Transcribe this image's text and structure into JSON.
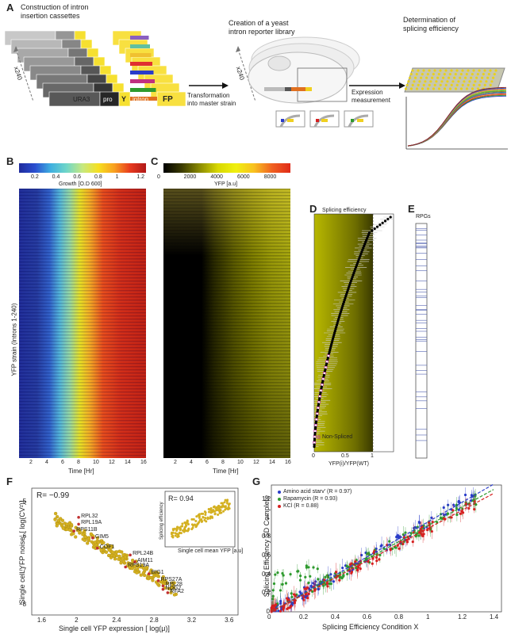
{
  "panels": {
    "A": {
      "label": "A",
      "step1_title": "Construction of intron\ninsertion cassettes",
      "step2_title": "Creation of a yeast\nintron reporter library",
      "step3_title": "Determination of\nsplicing efficiency",
      "x240_left": "x240",
      "x240_mid": "x240",
      "cassette": {
        "ura3": "URA3",
        "pro": "pro",
        "y": "Y",
        "intron": "intron",
        "fp": "FP"
      },
      "arrow1_label": "Transformation\ninto master strain",
      "arrow2_label": "Expression\nmeasurement"
    },
    "B": {
      "label": "B",
      "colorbar_ticks": [
        "0.2",
        "0.4",
        "0.6",
        "0.8",
        "1",
        "1.2"
      ],
      "colorbar_title": "Growth [O.D 600]",
      "ylabel": "YFP strain (Introns 1-240)",
      "xticks": [
        "2",
        "4",
        "6",
        "8",
        "10",
        "12",
        "14",
        "16"
      ],
      "xlabel": "Time [Hr]"
    },
    "C": {
      "label": "C",
      "colorbar_ticks": [
        "0",
        "2000",
        "4000",
        "6000",
        "8000"
      ],
      "colorbar_title": "YFP [a.u]",
      "xticks": [
        "2",
        "4",
        "6",
        "8",
        "10",
        "12",
        "14",
        "16"
      ],
      "xlabel": "Time [Hr]"
    },
    "D": {
      "label": "D",
      "title": "Splicing efficiency",
      "legend": "Non-Spliced",
      "xticks": [
        "0",
        "0.5",
        "1"
      ],
      "xlabel": "YFP(i)/YFP(WT)"
    },
    "E": {
      "label": "E",
      "title": "RPGs"
    },
    "F": {
      "label": "F",
      "r_main": "R= −0.99",
      "ylabel": "Single cell YFP noise, [ log(CV²)]",
      "xlabel": "Single cell YFP expression [ log(μ)]",
      "xticks": [
        "1.6",
        "2",
        "2.4",
        "2.8",
        "3.2",
        "3.6"
      ],
      "yticks": [
        "−5",
        "−6",
        "−7",
        "−8"
      ],
      "inset_r": "R= 0.94",
      "inset_ylabel": "Splicing efficiency",
      "inset_xlabel": "Single cell mean YFP [a.u]",
      "genes": [
        "RPL32",
        "RPL19A",
        "RPS11B",
        "GIM5",
        "COF1",
        "RPL24B",
        "AIM11",
        "RPS19A",
        "BIG1",
        "RPS27A",
        "RPL28",
        "NOG2",
        "RFA2"
      ]
    },
    "G": {
      "label": "G",
      "ylabel": "Splicing Efficiency SD Complete",
      "xlabel": "Splicing Efficiency Condition X",
      "xticks": [
        "0",
        "0.2",
        "0.4",
        "0.6",
        "0.8",
        "1",
        "1.2",
        "1.4"
      ],
      "yticks": [
        "0",
        "0.2",
        "0.4",
        "0.6",
        "0.8",
        "1",
        "1.2"
      ],
      "legend": [
        {
          "name": "Amino acid starv' (R = 0.97)",
          "color": "#2a3cc9"
        },
        {
          "name": "Rapamycin (R = 0.93)",
          "color": "#2e9a2e"
        },
        {
          "name": "KCl (R = 0.88)",
          "color": "#d62020"
        }
      ]
    }
  },
  "chart_data": [
    {
      "type": "scatter",
      "panel": "F",
      "xlim": [
        1.5,
        3.7
      ],
      "ylim": [
        -8.3,
        -4.6
      ],
      "color": "#d4b020",
      "labeled_points": [
        {
          "label": "RPL32",
          "x": 2.0,
          "y": -5.45
        },
        {
          "label": "RPL19A",
          "x": 2.0,
          "y": -5.65
        },
        {
          "label": "RPS11B",
          "x": 1.95,
          "y": -5.85
        },
        {
          "label": "GIM5",
          "x": 2.15,
          "y": -6.05
        },
        {
          "label": "COF1",
          "x": 2.2,
          "y": -6.35
        },
        {
          "label": "RPL24B",
          "x": 2.55,
          "y": -6.55
        },
        {
          "label": "AIM11",
          "x": 2.6,
          "y": -6.75
        },
        {
          "label": "RPS19A",
          "x": 2.5,
          "y": -6.9
        },
        {
          "label": "BIG1",
          "x": 2.75,
          "y": -7.1
        },
        {
          "label": "RPS27A",
          "x": 2.85,
          "y": -7.3
        },
        {
          "label": "RPL28",
          "x": 2.9,
          "y": -7.45
        },
        {
          "label": "NOG2",
          "x": 2.9,
          "y": -7.55
        },
        {
          "label": "RFA2",
          "x": 2.95,
          "y": -7.65
        }
      ]
    },
    {
      "type": "scatter",
      "panel": "G",
      "xlim": [
        0,
        1.45
      ],
      "ylim": [
        0,
        1.35
      ],
      "series": [
        {
          "name": "Amino acid starv' (R = 0.97)",
          "slope": 0.97
        },
        {
          "name": "Rapamycin (R = 0.93)",
          "slope": 0.93
        },
        {
          "name": "KCl (R = 0.88)",
          "slope": 0.9
        }
      ]
    }
  ]
}
